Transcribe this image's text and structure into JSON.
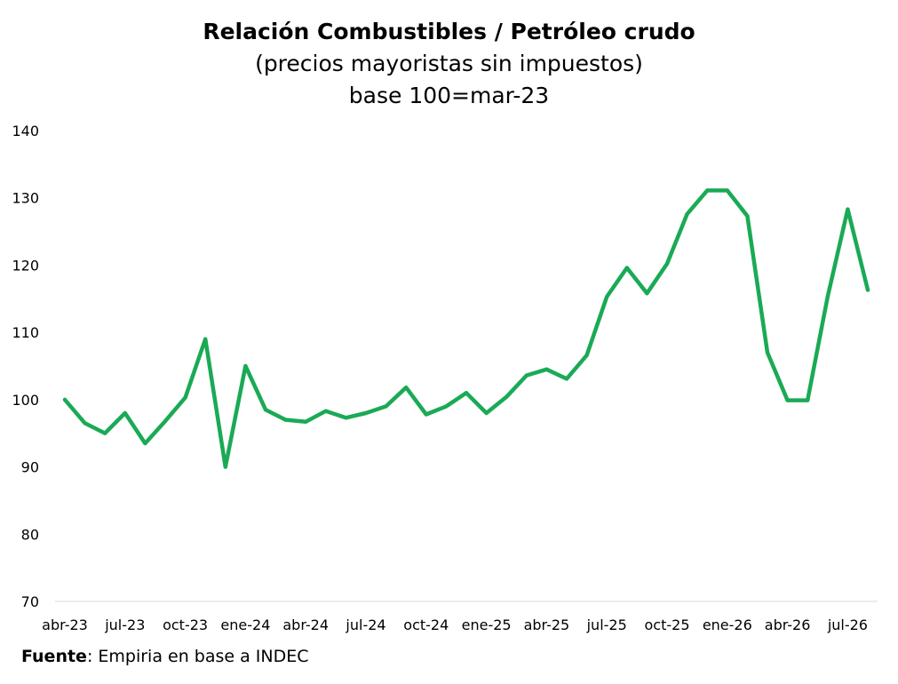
{
  "chart_data": {
    "type": "line",
    "title": "Relación Combustibles / Petróleo crudo",
    "subtitle_lines": [
      "(precios mayoristas sin impuestos)",
      "base 100=mar-23"
    ],
    "xlabel": "",
    "ylabel": "",
    "ylim": [
      70,
      140
    ],
    "yticks": [
      70,
      80,
      90,
      100,
      110,
      120,
      130,
      140
    ],
    "x": [
      "abr-23",
      "may-23",
      "jun-23",
      "jul-23",
      "ago-23",
      "sep-23",
      "oct-23",
      "nov-23",
      "dic-23",
      "ene-24",
      "feb-24",
      "mar-24",
      "abr-24",
      "may-24",
      "jun-24",
      "jul-24",
      "ago-24",
      "sep-24",
      "oct-24",
      "nov-24",
      "dic-24",
      "ene-25",
      "feb-25",
      "mar-25",
      "abr-25",
      "may-25",
      "jun-25",
      "jul-25",
      "ago-25",
      "sep-25",
      "oct-25",
      "nov-25",
      "dic-25",
      "ene-26",
      "feb-26",
      "mar-26",
      "abr-26",
      "may-26",
      "jun-26",
      "jul-26",
      "ago-26"
    ],
    "tick_labels": [
      "abr-23",
      "jul-23",
      "oct-23",
      "ene-24",
      "abr-24",
      "jul-24",
      "oct-24",
      "ene-25",
      "abr-25",
      "jul-25",
      "oct-25",
      "ene-26",
      "abr-26",
      "jul-26"
    ],
    "tick_every": 3,
    "series": [
      {
        "color": "#1aaa55",
        "values": [
          100,
          96.5,
          95,
          98,
          93.5,
          96.8,
          100.3,
          109,
          90,
          105,
          98.5,
          97,
          96.7,
          98.3,
          97.3,
          98,
          99,
          101.8,
          97.8,
          99,
          101,
          98,
          100.4,
          103.6,
          104.5,
          103.1,
          106.6,
          115.3,
          119.6,
          115.8,
          120.2,
          127.6,
          131.1,
          131.1,
          127.3,
          107,
          99.9,
          99.9,
          115.3,
          128.3,
          116.3
        ]
      }
    ],
    "grid": false,
    "legend": "none"
  },
  "source": {
    "label": "Fuente",
    "text": ": Empiria en base a INDEC"
  }
}
